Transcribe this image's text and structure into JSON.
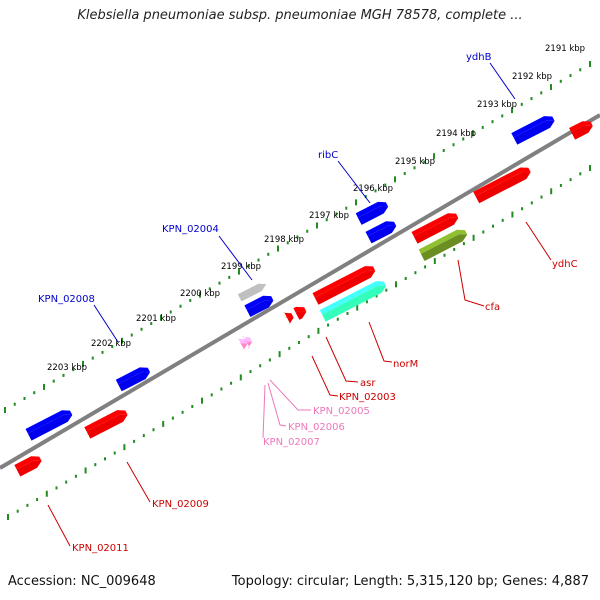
{
  "title": "Klebsiella pneumoniae subsp. pneumoniae MGH 78578, complete ...",
  "accession": "Accession: NC_009648",
  "topology": "Topology: circular; Length: 5,315,120 bp; Genes: 4,887",
  "colors": {
    "blue_gene": "#0000ee",
    "red_gene": "#ee0000",
    "grey_gene": "#c0c0c0",
    "pink_gene": "#ff88cc",
    "olive_gene": "#6b8e23",
    "aqua_gene": "#33ffbb",
    "tick": "#228b22",
    "backbone": "#808080",
    "label_blue": "#0000cc",
    "label_red": "#cc0000",
    "label_pink": "#ee77bb"
  },
  "ticks_top": [
    "2191 kbp",
    "2192 kbp",
    "2193 kbp",
    "2194 kbp",
    "2195 kbp",
    "2196 kbp",
    "2197 kbp",
    "2198 kbp",
    "2199 kbp",
    "2200 kbp",
    "2201 kbp",
    "2202 kbp",
    "2203 kbp"
  ],
  "genes_top": [
    {
      "name": "ydhB",
      "label": "ydhB",
      "color": "blue"
    },
    {
      "name": "ribC",
      "label": "ribC",
      "color": "blue"
    },
    {
      "name": "KPN_02004",
      "label": "KPN_02004",
      "color": "blue"
    },
    {
      "name": "KPN_02008",
      "label": "KPN_02008",
      "color": "blue"
    }
  ],
  "genes_bottom": [
    {
      "name": "ydhC",
      "label": "ydhC",
      "color": "red"
    },
    {
      "name": "cfa",
      "label": "cfa",
      "color": "red"
    },
    {
      "name": "norM",
      "label": "norM",
      "color": "red"
    },
    {
      "name": "asr",
      "label": "asr",
      "color": "red"
    },
    {
      "name": "KPN_02003",
      "label": "KPN_02003",
      "color": "red"
    },
    {
      "name": "KPN_02005",
      "label": "KPN_02005",
      "color": "pink"
    },
    {
      "name": "KPN_02006",
      "label": "KPN_02006",
      "color": "pink"
    },
    {
      "name": "KPN_02007",
      "label": "KPN_02007",
      "color": "pink"
    },
    {
      "name": "KPN_02009",
      "label": "KPN_02009",
      "color": "red"
    },
    {
      "name": "KPN_02011",
      "label": "KPN_02011",
      "color": "red"
    }
  ]
}
